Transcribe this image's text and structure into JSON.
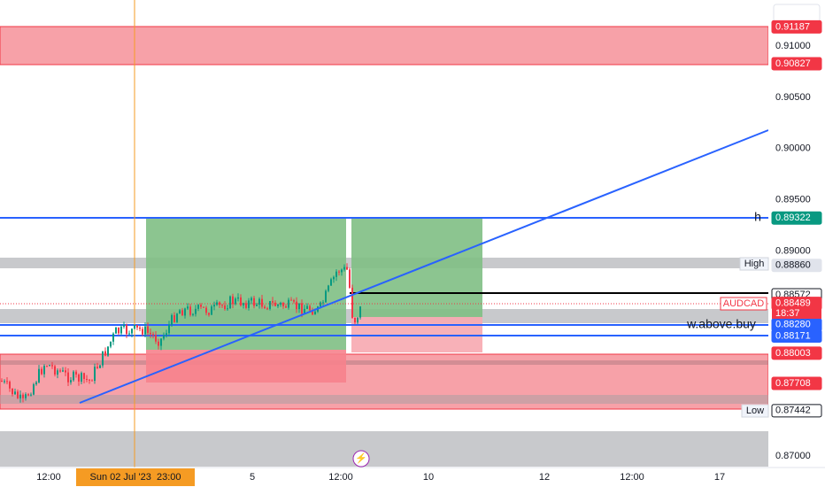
{
  "price_axis": {
    "ticks": [
      {
        "value": 0.91,
        "label": "0.91000"
      },
      {
        "value": 0.905,
        "label": "0.90500"
      },
      {
        "value": 0.9,
        "label": "0.90000"
      },
      {
        "value": 0.895,
        "label": "0.89500"
      },
      {
        "value": 0.89,
        "label": "0.89000"
      },
      {
        "value": 0.87,
        "label": "0.87000"
      }
    ]
  },
  "price_tags": [
    {
      "value": 0.91187,
      "label": "0.91187",
      "bg": "#f23645",
      "fg": "#ffffff"
    },
    {
      "value": 0.90827,
      "label": "0.90827",
      "bg": "#f23645",
      "fg": "#ffffff"
    },
    {
      "value": 0.89322,
      "label": "0.89322",
      "bg": "#089981",
      "fg": "#ffffff"
    },
    {
      "value": 0.8886,
      "label": "0.88860",
      "bg": "#e0e3eb",
      "fg": "#131722"
    },
    {
      "value": 0.88572,
      "label": "0.88572",
      "bg": "#ffffff",
      "fg": "#131722"
    },
    {
      "value": 0.88489,
      "label": "0.88489",
      "bg": "#f23645",
      "fg": "#ffffff"
    },
    {
      "value": 0.8828,
      "label": "0.88280",
      "bg": "#2962ff",
      "fg": "#ffffff"
    },
    {
      "value": 0.88171,
      "label": "0.88171",
      "bg": "#2962ff",
      "fg": "#ffffff"
    },
    {
      "value": 0.88003,
      "label": "0.88003",
      "bg": "#f23645",
      "fg": "#ffffff"
    },
    {
      "value": 0.87708,
      "label": "0.87708",
      "bg": "#f23645",
      "fg": "#ffffff"
    },
    {
      "value": 0.87442,
      "label": "0.87442",
      "bg": "#ffffff",
      "fg": "#131722"
    }
  ],
  "time_axis": {
    "labels": [
      "12:00",
      "5",
      "12:00",
      "10",
      "12",
      "12:00",
      "17"
    ],
    "crosshair_label": "Sun 02 Jul '23  23:00"
  },
  "annotations": {
    "h_line": "h",
    "buy_line": "w.above.buy",
    "high": "High",
    "low": "Low",
    "symbol": "AUDCAD",
    "countdown": "18:37"
  }
}
